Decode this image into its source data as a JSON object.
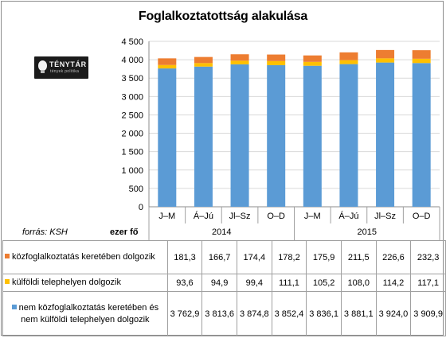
{
  "chart_data": {
    "type": "bar",
    "stacked": true,
    "title": "Foglalkoztatottság alakulása",
    "categories": [
      "J–M",
      "Á–Jú",
      "Jl–Sz",
      "O–D",
      "J–M",
      "Á–Jú",
      "Jl–Sz",
      "O–D"
    ],
    "years": [
      {
        "label": "2014",
        "span": [
          0,
          3
        ]
      },
      {
        "label": "2015",
        "span": [
          4,
          7
        ]
      }
    ],
    "ylim": [
      0,
      4500
    ],
    "yticks": [
      "0",
      "500",
      "1 000",
      "1 500",
      "2 000",
      "2 500",
      "3 000",
      "3 500",
      "4 000",
      "4 500"
    ],
    "ytick_values": [
      0,
      500,
      1000,
      1500,
      2000,
      2500,
      3000,
      3500,
      4000,
      4500
    ],
    "grid": true,
    "unit_label": "ezer fő",
    "source": "forrás: KSH",
    "series": [
      {
        "name": "nem közfoglalkoztatás keretében és nem külföldi telephelyen dolgozik",
        "color": "#5b9bd5",
        "values": [
          3762.9,
          3813.6,
          3874.8,
          3852.4,
          3836.1,
          3881.1,
          3924.0,
          3909.9
        ],
        "labels": [
          "3 762,9",
          "3 813,6",
          "3 874,8",
          "3 852,4",
          "3 836,1",
          "3 881,1",
          "3 924,0",
          "3 909,9"
        ]
      },
      {
        "name": "külföldi telephelyen dolgozik",
        "color": "#ffc000",
        "values": [
          93.6,
          94.9,
          99.4,
          111.1,
          105.2,
          108.0,
          114.2,
          117.1
        ],
        "labels": [
          "93,6",
          "94,9",
          "99,4",
          "111,1",
          "105,2",
          "108,0",
          "114,2",
          "117,1"
        ]
      },
      {
        "name": "közfoglalkoztatás keretében dolgozik",
        "color": "#ed7d31",
        "values": [
          181.3,
          166.7,
          174.4,
          178.2,
          175.9,
          211.5,
          226.6,
          232.3
        ],
        "labels": [
          "181,3",
          "166,7",
          "174,4",
          "178,2",
          "175,9",
          "211,5",
          "226,6",
          "232,3"
        ]
      }
    ]
  },
  "logo": {
    "name": "TÉNYTÁR",
    "tagline": "tények politika"
  }
}
